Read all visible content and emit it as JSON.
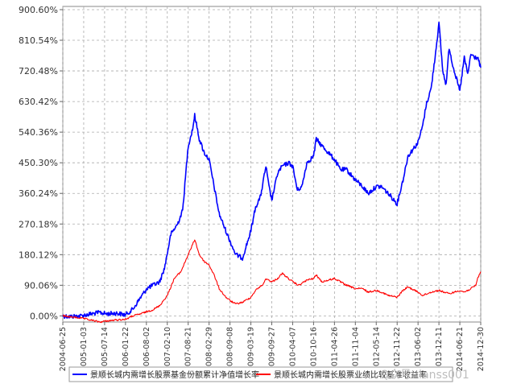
{
  "chart_data": {
    "type": "line",
    "title": "",
    "xlabel": "",
    "ylabel": "",
    "y_unit": "%",
    "ylim": [
      -18.0,
      910.0
    ],
    "y_ticks": [
      "0.00%",
      "90.06%",
      "180.12%",
      "270.18%",
      "360.24%",
      "450.30%",
      "540.36%",
      "630.42%",
      "720.48%",
      "810.54%",
      "900.60%"
    ],
    "y_tick_values": [
      0,
      90.06,
      180.12,
      270.18,
      360.24,
      450.3,
      540.36,
      630.42,
      720.48,
      810.54,
      900.6
    ],
    "x_ticks": [
      "2004-06-25",
      "2005-01-03",
      "2005-07-14",
      "2006-01-22",
      "2006-08-02",
      "2007-02-10",
      "2007-08-21",
      "2008-02-29",
      "2008-09-08",
      "2009-03-19",
      "2009-09-27",
      "2010-04-07",
      "2010-10-16",
      "2011-04-26",
      "2011-11-04",
      "2012-05-14",
      "2012-11-22",
      "2013-06-02",
      "2013-12-11",
      "2014-06-21",
      "2014-12-30"
    ],
    "x_range": [
      "2004-06-25",
      "2014-12-30"
    ],
    "grid": true,
    "legend_position": "bottom",
    "series": [
      {
        "name": "景顺长城内需增长股票基金份额累计净值增长率",
        "color": "#0000ff",
        "x": [
          "2004-06-25",
          "2004-09-01",
          "2004-12-01",
          "2005-03-01",
          "2005-06-01",
          "2005-08-01",
          "2005-11-01",
          "2006-01-22",
          "2006-04-01",
          "2006-06-01",
          "2006-07-15",
          "2006-08-02",
          "2006-10-01",
          "2006-12-01",
          "2007-01-15",
          "2007-03-15",
          "2007-05-15",
          "2007-07-01",
          "2007-08-21",
          "2007-10-01",
          "2007-10-20",
          "2007-12-01",
          "2008-01-15",
          "2008-02-29",
          "2008-04-15",
          "2008-06-01",
          "2008-08-01",
          "2008-09-08",
          "2008-11-01",
          "2009-01-01",
          "2009-03-19",
          "2009-05-01",
          "2009-06-15",
          "2009-08-04",
          "2009-09-01",
          "2009-09-27",
          "2009-11-20",
          "2010-01-01",
          "2010-03-01",
          "2010-04-07",
          "2010-05-20",
          "2010-07-01",
          "2010-08-15",
          "2010-10-16",
          "2010-11-10",
          "2011-01-01",
          "2011-03-01",
          "2011-04-26",
          "2011-06-20",
          "2011-08-15",
          "2011-11-04",
          "2012-01-10",
          "2012-03-01",
          "2012-05-14",
          "2012-07-01",
          "2012-09-01",
          "2012-11-22",
          "2013-01-15",
          "2013-03-01",
          "2013-06-02",
          "2013-07-15",
          "2013-08-15",
          "2013-10-01",
          "2013-11-01",
          "2013-12-11",
          "2014-01-15",
          "2014-02-15",
          "2014-03-15",
          "2014-04-15",
          "2014-06-21",
          "2014-08-01",
          "2014-09-01",
          "2014-10-01",
          "2014-11-01",
          "2014-12-01",
          "2014-12-30"
        ],
        "values": [
          0,
          -2,
          0,
          5,
          10,
          6,
          8,
          3,
          20,
          50,
          70,
          80,
          90,
          100,
          140,
          240,
          270,
          310,
          500,
          550,
          590,
          520,
          480,
          460,
          380,
          300,
          250,
          220,
          180,
          170,
          250,
          320,
          350,
          440,
          380,
          340,
          420,
          440,
          450,
          440,
          370,
          380,
          450,
          470,
          520,
          500,
          480,
          460,
          430,
          430,
          400,
          380,
          360,
          380,
          380,
          360,
          330,
          400,
          470,
          510,
          560,
          620,
          670,
          750,
          860,
          720,
          680,
          790,
          740,
          660,
          760,
          710,
          770,
          760,
          760,
          730
        ]
      },
      {
        "name": "景顺长城内需增长股票业绩比较基准收益率",
        "color": "#ff0000",
        "x": [
          "2004-06-25",
          "2004-09-01",
          "2004-12-01",
          "2005-03-01",
          "2005-06-01",
          "2005-08-01",
          "2005-11-01",
          "2006-01-22",
          "2006-04-01",
          "2006-06-01",
          "2006-08-02",
          "2006-10-01",
          "2006-12-01",
          "2007-02-10",
          "2007-04-15",
          "2007-06-15",
          "2007-08-21",
          "2007-10-01",
          "2007-10-20",
          "2007-12-01",
          "2008-01-15",
          "2008-02-29",
          "2008-04-15",
          "2008-06-01",
          "2008-08-01",
          "2008-09-08",
          "2008-11-01",
          "2009-01-01",
          "2009-03-19",
          "2009-05-01",
          "2009-07-15",
          "2009-08-04",
          "2009-09-27",
          "2009-11-20",
          "2010-01-01",
          "2010-04-07",
          "2010-06-01",
          "2010-08-15",
          "2010-10-16",
          "2010-11-10",
          "2011-01-01",
          "2011-04-26",
          "2011-06-20",
          "2011-08-15",
          "2011-11-04",
          "2012-01-10",
          "2012-03-01",
          "2012-05-14",
          "2012-07-01",
          "2012-09-01",
          "2012-11-22",
          "2013-01-15",
          "2013-03-01",
          "2013-06-02",
          "2013-07-15",
          "2013-10-01",
          "2013-12-11",
          "2014-03-15",
          "2014-06-21",
          "2014-08-01",
          "2014-10-01",
          "2014-11-15",
          "2014-12-01",
          "2014-12-30"
        ],
        "values": [
          0,
          -3,
          -6,
          -12,
          -18,
          -15,
          -12,
          -10,
          0,
          5,
          12,
          18,
          30,
          60,
          110,
          130,
          180,
          210,
          225,
          180,
          160,
          150,
          120,
          80,
          55,
          45,
          35,
          40,
          55,
          75,
          95,
          110,
          100,
          110,
          125,
          100,
          90,
          105,
          110,
          120,
          100,
          110,
          100,
          90,
          80,
          80,
          70,
          75,
          70,
          60,
          55,
          75,
          85,
          70,
          60,
          70,
          75,
          65,
          75,
          70,
          80,
          90,
          110,
          130
        ]
      }
    ]
  },
  "watermark": "Q众号: lanss001"
}
